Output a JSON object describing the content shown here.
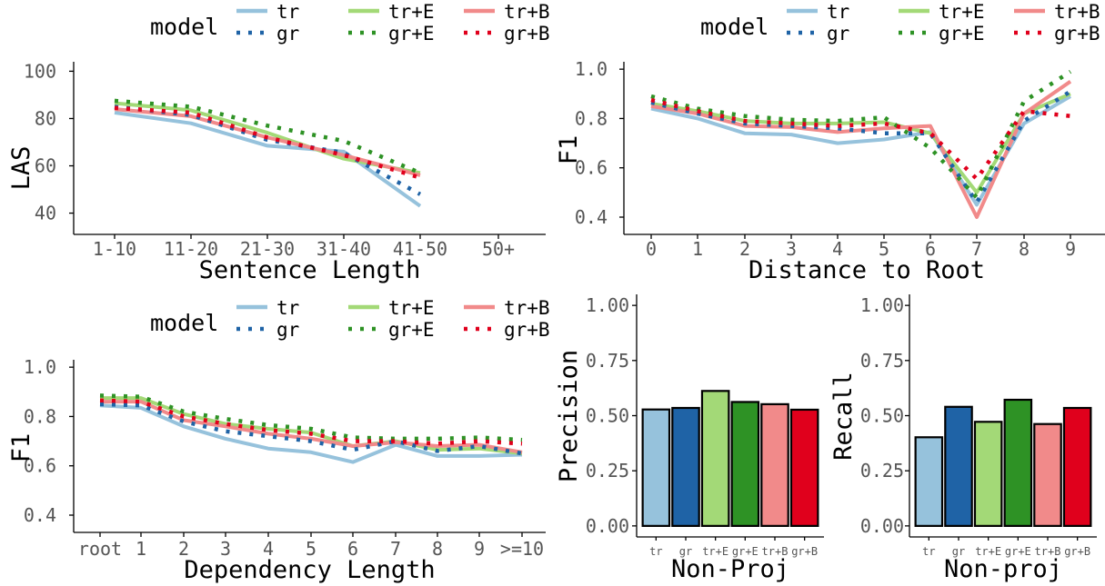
{
  "legend": {
    "title": "model",
    "series": [
      "tr",
      "tr+E",
      "tr+B",
      "gr",
      "gr+E",
      "gr+B"
    ]
  },
  "colors": {
    "tr": "#96c2dc",
    "gr": "#1f63a6",
    "tr+E": "#a3d977",
    "gr+E": "#2e9225",
    "tr+B": "#f18a8a",
    "gr+B": "#e0001c"
  },
  "chart_data": [
    {
      "type": "line",
      "xlabel": "Sentence Length",
      "ylabel": "LAS",
      "categories": [
        "1-10",
        "11-20",
        "21-30",
        "31-40",
        "41-50",
        "50+"
      ],
      "yticks": [
        40,
        60,
        80,
        100
      ],
      "ylim": [
        31,
        104
      ],
      "series": [
        {
          "name": "tr",
          "values": [
            82.5,
            78,
            68.5,
            66,
            43,
            null
          ]
        },
        {
          "name": "tr+E",
          "values": [
            86.5,
            83.5,
            74,
            63,
            57,
            null
          ]
        },
        {
          "name": "tr+B",
          "values": [
            84,
            81,
            72,
            64.5,
            56,
            null
          ]
        },
        {
          "name": "gr",
          "values": [
            85,
            81.5,
            71,
            65.5,
            48,
            null
          ]
        },
        {
          "name": "gr+E",
          "values": [
            87.5,
            85,
            77,
            70.5,
            57,
            null
          ]
        },
        {
          "name": "gr+B",
          "values": [
            84.5,
            82.5,
            72,
            64.5,
            55,
            null
          ]
        }
      ]
    },
    {
      "type": "line",
      "xlabel": "Distance to Root",
      "ylabel": "F1",
      "categories": [
        "0",
        "1",
        "2",
        "3",
        "4",
        "5",
        "6",
        "7",
        "8",
        "9"
      ],
      "yticks": [
        "0.4",
        "0.6",
        "0.8",
        "1.0"
      ],
      "ylim": [
        0.33,
        1.03
      ],
      "series": [
        {
          "name": "tr",
          "values": [
            0.84,
            0.8,
            0.74,
            0.735,
            0.7,
            0.715,
            0.745,
            0.45,
            0.78,
            0.89
          ]
        },
        {
          "name": "tr+E",
          "values": [
            0.86,
            0.83,
            0.79,
            0.78,
            0.78,
            0.785,
            0.74,
            0.5,
            0.82,
            0.9
          ]
        },
        {
          "name": "tr+B",
          "values": [
            0.85,
            0.82,
            0.77,
            0.765,
            0.745,
            0.76,
            0.77,
            0.4,
            0.82,
            0.95
          ]
        },
        {
          "name": "gr",
          "values": [
            0.865,
            0.82,
            0.78,
            0.77,
            0.76,
            0.74,
            0.74,
            0.46,
            0.79,
            0.91
          ]
        },
        {
          "name": "gr+E",
          "values": [
            0.89,
            0.84,
            0.81,
            0.795,
            0.79,
            0.805,
            0.68,
            0.48,
            0.87,
            0.99
          ]
        },
        {
          "name": "gr+B",
          "values": [
            0.875,
            0.83,
            0.79,
            0.78,
            0.77,
            0.78,
            0.74,
            0.555,
            0.83,
            0.81
          ]
        }
      ]
    },
    {
      "type": "line",
      "xlabel": "Dependency Length",
      "ylabel": "F1",
      "categories": [
        "root",
        "1",
        "2",
        "3",
        "4",
        "5",
        "6",
        "7",
        "8",
        "9",
        ">=10"
      ],
      "yticks": [
        "0.4",
        "0.6",
        "0.8",
        "1.0"
      ],
      "ylim": [
        0.33,
        1.03
      ],
      "series": [
        {
          "name": "tr",
          "values": [
            0.845,
            0.835,
            0.76,
            0.71,
            0.67,
            0.655,
            0.615,
            0.685,
            0.64,
            0.64,
            0.645
          ]
        },
        {
          "name": "tr+E",
          "values": [
            0.875,
            0.875,
            0.81,
            0.77,
            0.75,
            0.735,
            0.68,
            0.7,
            0.665,
            0.67,
            0.65
          ]
        },
        {
          "name": "tr+B",
          "values": [
            0.86,
            0.86,
            0.785,
            0.76,
            0.73,
            0.71,
            0.68,
            0.695,
            0.68,
            0.685,
            0.655
          ]
        },
        {
          "name": "gr",
          "values": [
            0.85,
            0.845,
            0.78,
            0.74,
            0.72,
            0.7,
            0.665,
            0.7,
            0.66,
            0.68,
            0.65
          ]
        },
        {
          "name": "gr+E",
          "values": [
            0.885,
            0.88,
            0.82,
            0.79,
            0.765,
            0.75,
            0.715,
            0.71,
            0.71,
            0.715,
            0.705
          ]
        },
        {
          "name": "gr+B",
          "values": [
            0.865,
            0.86,
            0.8,
            0.77,
            0.745,
            0.73,
            0.7,
            0.7,
            0.69,
            0.7,
            0.69
          ]
        }
      ]
    },
    {
      "type": "bar",
      "xlabel": "Non-Proj",
      "ylabel": "Precision",
      "categories": [
        "tr",
        "gr",
        "tr+E",
        "gr+E",
        "tr+B",
        "gr+B"
      ],
      "values": [
        0.528,
        0.535,
        0.612,
        0.562,
        0.552,
        0.527
      ],
      "yticks": [
        "0.00",
        "0.25",
        "0.50",
        "0.75",
        "1.00"
      ],
      "ylim": [
        -0.05,
        1.05
      ]
    },
    {
      "type": "bar",
      "xlabel": "Non-proj",
      "ylabel": "Recall",
      "categories": [
        "tr",
        "gr",
        "tr+E",
        "gr+E",
        "tr+B",
        "gr+B"
      ],
      "values": [
        0.402,
        0.54,
        0.472,
        0.572,
        0.462,
        0.535
      ],
      "yticks": [
        "0.00",
        "0.25",
        "0.50",
        "0.75",
        "1.00"
      ],
      "ylim": [
        -0.05,
        1.05
      ]
    }
  ]
}
